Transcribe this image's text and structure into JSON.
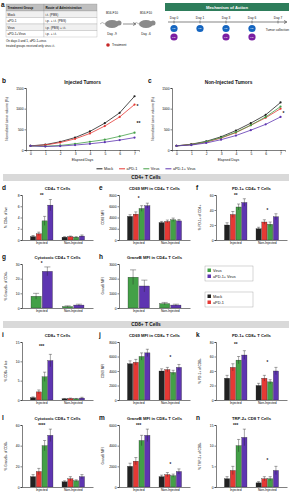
{
  "chart_data": [
    {
      "type": "table",
      "panel": "a",
      "columns": [
        "Treatment Group",
        "Route of Administration"
      ],
      "rows": [
        [
          "Mock",
          "i.t. (PBS)"
        ],
        [
          "aPD-1",
          "i.p. + i.t. (PBS)"
        ],
        [
          "Virus",
          "i.p. (PBS) + i.t."
        ],
        [
          "aPD-1+Virus",
          "i.p. + i.t."
        ]
      ],
      "note": [
        "On days 0 and 1, aPD-1+virus",
        "treated groups received only virus i.t."
      ]
    },
    {
      "type": "schedule",
      "title": "Mechanism of Action",
      "inoculations": [
        {
          "label": "B16-F10",
          "day": "Day -9"
        },
        {
          "label": "B16-F10",
          "day": "Day -6"
        }
      ],
      "treatment": "Treatment",
      "days": [
        "Day 0",
        "Day 1",
        "Day 3",
        "Day 6",
        "Day 7"
      ],
      "doses": [
        [
          "I.T.",
          "I.P."
        ],
        [
          "I.T."
        ],
        [
          "I.T.",
          "I.P."
        ],
        [
          "I.T.",
          "I.P."
        ],
        []
      ],
      "end_label": "Tumor collection"
    },
    {
      "type": "line",
      "panel": "b",
      "title": "Injected Tumors",
      "x_label": "Elapsed Days",
      "y_label": "Normalized tumor volume (%)",
      "x": [
        0,
        1,
        2,
        3,
        4,
        5,
        6,
        7
      ],
      "xlim": [
        -0.3,
        7.3
      ],
      "xticks": [
        0,
        1,
        2,
        3,
        4,
        5,
        6,
        7
      ],
      "ylim": [
        0,
        1500
      ],
      "yticks": [
        0,
        500,
        1000,
        1500
      ],
      "legend": "bottom",
      "series": [
        {
          "name": "Mock",
          "color": "#222222",
          "values": [
            100,
            130,
            200,
            300,
            450,
            650,
            900,
            1300
          ]
        },
        {
          "name": "aPD-1",
          "color": "#e53935",
          "values": [
            100,
            120,
            180,
            270,
            400,
            580,
            800,
            1100
          ]
        },
        {
          "name": "Virus",
          "color": "#43a047",
          "values": [
            100,
            90,
            110,
            150,
            200,
            250,
            330,
            420
          ]
        },
        {
          "name": "aPD-1+ Virus",
          "color": "#5e35b1",
          "values": [
            100,
            85,
            95,
            120,
            150,
            190,
            240,
            300
          ]
        }
      ],
      "annotations": [
        {
          "x": 7,
          "y": 1050,
          "text": "*"
        },
        {
          "x": 7,
          "y": 650,
          "text": "**"
        }
      ]
    },
    {
      "type": "line",
      "panel": "c",
      "title": "Non-Injected Tumors",
      "x_label": "Elapsed Days",
      "y_label": "Normalized tumor volume (%)",
      "x": [
        0,
        1,
        2,
        3,
        4,
        5,
        6,
        7
      ],
      "xlim": [
        -0.3,
        7.3
      ],
      "xticks": [
        0,
        1,
        2,
        3,
        4,
        5,
        6,
        7
      ],
      "ylim": [
        0,
        1500
      ],
      "yticks": [
        0,
        500,
        1000,
        1500
      ],
      "series": [
        {
          "name": "Mock",
          "color": "#222222",
          "values": [
            100,
            140,
            210,
            320,
            470,
            650,
            850,
            1150
          ]
        },
        {
          "name": "aPD-1",
          "color": "#e53935",
          "values": [
            100,
            130,
            190,
            290,
            420,
            600,
            780,
            1000
          ]
        },
        {
          "name": "Virus",
          "color": "#43a047",
          "values": [
            100,
            130,
            200,
            300,
            430,
            600,
            800,
            1050
          ]
        },
        {
          "name": "aPD-1+ Virus",
          "color": "#5e35b1",
          "values": [
            100,
            120,
            170,
            250,
            350,
            480,
            620,
            800
          ]
        }
      ],
      "annotations": [
        {
          "x": 7,
          "y": 880,
          "text": "*"
        }
      ]
    },
    {
      "type": "header",
      "title": "CD4+ T Cells"
    },
    {
      "type": "bar",
      "panel": "d",
      "title": "CD4+ T Cells",
      "y_label": "% CD4+ of live",
      "categories": [
        "Injected",
        "Non-Injected"
      ],
      "ylim": [
        0,
        8
      ],
      "yticks": [
        0,
        2,
        4,
        6,
        8
      ],
      "series": [
        {
          "name": "Mock",
          "color": "#222222",
          "values": [
            0.6,
            0.5
          ],
          "errors": [
            0.2,
            0.1
          ]
        },
        {
          "name": "aPD-1",
          "color": "#e53935",
          "values": [
            1.1,
            0.6
          ],
          "errors": [
            0.3,
            0.1
          ]
        },
        {
          "name": "Virus",
          "color": "#43a047",
          "values": [
            3.4,
            0.5
          ],
          "errors": [
            0.8,
            0.1
          ]
        },
        {
          "name": "aPD-1+ Virus",
          "color": "#5e35b1",
          "values": [
            6.2,
            0.7
          ],
          "errors": [
            1.0,
            0.2
          ]
        }
      ],
      "annotations": [
        {
          "x": 0,
          "y": 7.6,
          "text": "**"
        }
      ]
    },
    {
      "type": "bar",
      "panel": "e",
      "title": "CD69 MFI in CD4+ T Cells",
      "y_label": "CD69 MFI",
      "categories": [
        "Injected",
        "Non-Injected"
      ],
      "ylim": [
        0,
        8000
      ],
      "yticks": [
        0,
        2000,
        4000,
        6000,
        8000
      ],
      "series": [
        {
          "name": "Mock",
          "color": "#222222",
          "values": [
            4200,
            3100
          ],
          "errors": [
            300,
            200
          ]
        },
        {
          "name": "aPD-1",
          "color": "#e53935",
          "values": [
            4600,
            3300
          ],
          "errors": [
            400,
            250
          ]
        },
        {
          "name": "Virus",
          "color": "#43a047",
          "values": [
            5600,
            3600
          ],
          "errors": [
            500,
            300
          ]
        },
        {
          "name": "aPD-1+ Virus",
          "color": "#5e35b1",
          "values": [
            6100,
            3400
          ],
          "errors": [
            450,
            250
          ]
        }
      ],
      "annotations": [
        {
          "x": 0,
          "y": 7200,
          "text": "*"
        }
      ]
    },
    {
      "type": "bar",
      "panel": "f",
      "title": "PD-1+ CD4+ T Cells",
      "y_label": "% PD-1+ of CD4+",
      "categories": [
        "Injected",
        "Non-Injected"
      ],
      "ylim": [
        0,
        60
      ],
      "yticks": [
        0,
        20,
        40,
        60
      ],
      "series": [
        {
          "name": "Mock",
          "color": "#222222",
          "values": [
            20,
            15
          ],
          "errors": [
            3,
            2
          ]
        },
        {
          "name": "aPD-1",
          "color": "#e53935",
          "values": [
            34,
            24
          ],
          "errors": [
            4,
            3
          ]
        },
        {
          "name": "Virus",
          "color": "#43a047",
          "values": [
            44,
            21
          ],
          "errors": [
            4,
            3
          ]
        },
        {
          "name": "aPD-1+ Virus",
          "color": "#5e35b1",
          "values": [
            50,
            31
          ],
          "errors": [
            5,
            4
          ]
        }
      ],
      "annotations": [
        {
          "x": 0,
          "y": 57,
          "text": "**"
        },
        {
          "x": 1,
          "y": 38,
          "text": "*"
        }
      ]
    },
    {
      "type": "bar",
      "panel": "g",
      "title": "Cytotoxic CD4+ T Cells",
      "y_label": "% GranzB+ of CD4+",
      "categories": [
        "Injected",
        "Non-Injected"
      ],
      "ylim": [
        0,
        30
      ],
      "yticks": [
        0,
        10,
        20,
        30
      ],
      "series": [
        {
          "name": "Virus",
          "color": "#43a047",
          "values": [
            8,
            1
          ],
          "errors": [
            2,
            0.5
          ]
        },
        {
          "name": "aPD-1+ Virus",
          "color": "#5e35b1",
          "values": [
            25,
            2
          ],
          "errors": [
            3,
            0.6
          ]
        }
      ],
      "annotations": [
        {
          "x": 0,
          "y": 29,
          "text": "*"
        }
      ]
    },
    {
      "type": "bar",
      "panel": "h",
      "title": "GranzB MFI in CD4+ T Cells",
      "y_label": "GranzB MFI",
      "categories": [
        "Injected",
        "Non-Injected"
      ],
      "ylim": [
        0,
        3000
      ],
      "yticks": [
        0,
        1000,
        2000,
        3000
      ],
      "legend": "right",
      "series": [
        {
          "name": "Virus",
          "color": "#43a047",
          "values": [
            2100,
            300
          ],
          "errors": [
            500,
            80
          ]
        },
        {
          "name": "aPD-1+ Virus",
          "color": "#5e35b1",
          "values": [
            1500,
            200
          ],
          "errors": [
            400,
            60
          ]
        }
      ]
    },
    {
      "type": "legend",
      "series": [
        {
          "name": "Mock",
          "color": "#222222"
        },
        {
          "name": "aPD-1",
          "color": "#e53935"
        }
      ]
    },
    {
      "type": "header",
      "title": "CD8+ T Cells"
    },
    {
      "type": "bar",
      "panel": "i",
      "title": "CD8+ T Cells",
      "y_label": "% CD8+ of live",
      "categories": [
        "Injected",
        "Non-Injected"
      ],
      "ylim": [
        0,
        15
      ],
      "yticks": [
        0,
        5,
        10,
        15
      ],
      "series": [
        {
          "name": "Mock",
          "color": "#222222",
          "values": [
            0.6,
            0.3
          ],
          "errors": [
            0.2,
            0.1
          ]
        },
        {
          "name": "aPD-1",
          "color": "#e53935",
          "values": [
            2.1,
            0.4
          ],
          "errors": [
            0.5,
            0.1
          ]
        },
        {
          "name": "Virus",
          "color": "#43a047",
          "values": [
            6.0,
            0.3
          ],
          "errors": [
            1.2,
            0.1
          ]
        },
        {
          "name": "aPD-1+ Virus",
          "color": "#5e35b1",
          "values": [
            10.2,
            0.5
          ],
          "errors": [
            1.6,
            0.2
          ]
        }
      ],
      "annotations": [
        {
          "x": 0,
          "y": 13.5,
          "text": "***"
        }
      ]
    },
    {
      "type": "bar",
      "panel": "j",
      "title": "CD69 MFI in CD8+ T Cells",
      "y_label": "CD69 MFI",
      "categories": [
        "Injected",
        "Non-Injected"
      ],
      "ylim": [
        0,
        8000
      ],
      "yticks": [
        0,
        2000,
        4000,
        6000,
        8000
      ],
      "series": [
        {
          "name": "Mock",
          "color": "#222222",
          "values": [
            5000,
            4000
          ],
          "errors": [
            400,
            300
          ]
        },
        {
          "name": "aPD-1",
          "color": "#e53935",
          "values": [
            5200,
            4200
          ],
          "errors": [
            400,
            300
          ]
        },
        {
          "name": "Virus",
          "color": "#43a047",
          "values": [
            6000,
            3800
          ],
          "errors": [
            500,
            300
          ]
        },
        {
          "name": "aPD-1+ Virus",
          "color": "#5e35b1",
          "values": [
            6500,
            4500
          ],
          "errors": [
            500,
            400
          ]
        }
      ],
      "annotations": [
        {
          "x": 1,
          "y": 5600,
          "text": "*"
        }
      ]
    },
    {
      "type": "bar",
      "panel": "k",
      "title": "PD-1+ CD8+ T Cells",
      "y_label": "% PD-1+ of CD8+",
      "categories": [
        "Injected",
        "Non-Injected"
      ],
      "ylim": [
        0,
        80
      ],
      "yticks": [
        0,
        20,
        40,
        60,
        80
      ],
      "series": [
        {
          "name": "Mock",
          "color": "#222222",
          "values": [
            30,
            20
          ],
          "errors": [
            4,
            3
          ]
        },
        {
          "name": "aPD-1",
          "color": "#e53935",
          "values": [
            45,
            30
          ],
          "errors": [
            5,
            4
          ]
        },
        {
          "name": "Virus",
          "color": "#43a047",
          "values": [
            55,
            25
          ],
          "errors": [
            5,
            3
          ]
        },
        {
          "name": "aPD-1+ Virus",
          "color": "#5e35b1",
          "values": [
            62,
            40
          ],
          "errors": [
            6,
            5
          ]
        }
      ],
      "annotations": [
        {
          "x": 0,
          "y": 74,
          "text": "**"
        },
        {
          "x": 1,
          "y": 50,
          "text": "*"
        }
      ]
    },
    {
      "type": "bar",
      "panel": "l",
      "title": "Cytotoxic CD8+ T Cells",
      "y_label": "% GranzB+ of CD8+",
      "categories": [
        "Injected",
        "Non-Injected"
      ],
      "ylim": [
        0,
        60
      ],
      "yticks": [
        0,
        20,
        40,
        60
      ],
      "series": [
        {
          "name": "Mock",
          "color": "#222222",
          "values": [
            10,
            5
          ],
          "errors": [
            2,
            1
          ]
        },
        {
          "name": "aPD-1",
          "color": "#e53935",
          "values": [
            15,
            8
          ],
          "errors": [
            3,
            2
          ]
        },
        {
          "name": "Virus",
          "color": "#43a047",
          "values": [
            40,
            6
          ],
          "errors": [
            5,
            1
          ]
        },
        {
          "name": "aPD-1+ Virus",
          "color": "#5e35b1",
          "values": [
            50,
            10
          ],
          "errors": [
            6,
            2
          ]
        }
      ],
      "annotations": [
        {
          "x": 0,
          "y": 58,
          "text": "****"
        }
      ]
    },
    {
      "type": "bar",
      "panel": "m",
      "title": "GranzB MFI in CD8+ T Cells",
      "y_label": "GranzB MFI",
      "categories": [
        "Injected",
        "Non-Injected"
      ],
      "ylim": [
        0,
        6000
      ],
      "yticks": [
        0,
        2000,
        4000,
        6000
      ],
      "series": [
        {
          "name": "Mock",
          "color": "#222222",
          "values": [
            2000,
            1000
          ],
          "errors": [
            300,
            150
          ]
        },
        {
          "name": "aPD-1",
          "color": "#e53935",
          "values": [
            2500,
            1200
          ],
          "errors": [
            350,
            200
          ]
        },
        {
          "name": "Virus",
          "color": "#43a047",
          "values": [
            4500,
            1100
          ],
          "errors": [
            500,
            150
          ]
        },
        {
          "name": "aPD-1+ Virus",
          "color": "#5e35b1",
          "values": [
            5000,
            1500
          ],
          "errors": [
            600,
            250
          ]
        }
      ],
      "annotations": [
        {
          "x": 0,
          "y": 5800,
          "text": "***"
        },
        {
          "x": 1,
          "y": 2000,
          "text": "*"
        }
      ]
    },
    {
      "type": "bar",
      "panel": "n",
      "title": "TRP-2+ CD8 T Cells",
      "y_label": "% TRP-2+ of CD8+",
      "categories": [
        "Injected",
        "Non-Injected"
      ],
      "ylim": [
        0,
        15
      ],
      "yticks": [
        0,
        5,
        10,
        15
      ],
      "series": [
        {
          "name": "Mock",
          "color": "#222222",
          "values": [
            2,
            1
          ],
          "errors": [
            0.5,
            0.3
          ]
        },
        {
          "name": "aPD-1",
          "color": "#e53935",
          "values": [
            4,
            2
          ],
          "errors": [
            1,
            0.5
          ]
        },
        {
          "name": "Virus",
          "color": "#43a047",
          "values": [
            10,
            2
          ],
          "errors": [
            1.5,
            0.5
          ]
        },
        {
          "name": "aPD-1+ Virus",
          "color": "#5e35b1",
          "values": [
            12,
            4
          ],
          "errors": [
            2,
            1
          ]
        }
      ],
      "annotations": [
        {
          "x": 0,
          "y": 14.6,
          "text": "***"
        },
        {
          "x": 1,
          "y": 6,
          "text": "*"
        }
      ]
    }
  ]
}
